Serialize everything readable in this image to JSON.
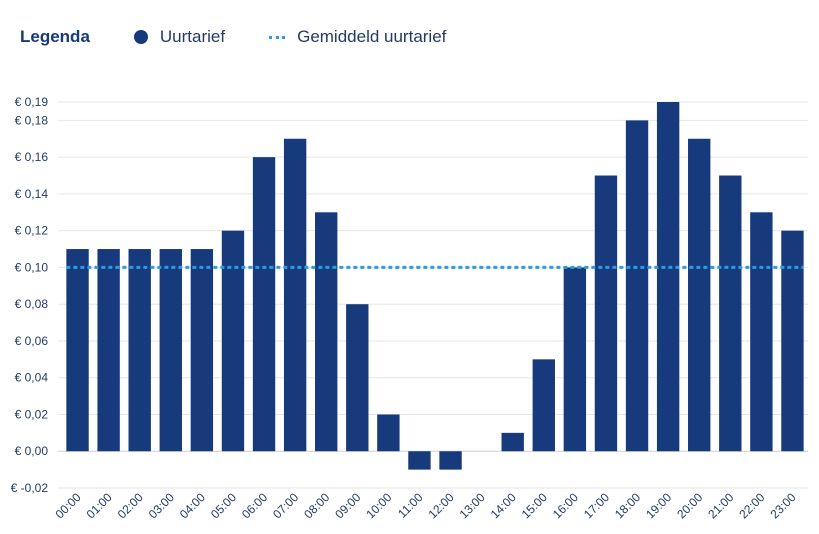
{
  "legend": {
    "title": "Legenda",
    "bar_label": "Uurtarief",
    "line_label": "Gemiddeld uurtarief"
  },
  "colors": {
    "bar": "#163a7c",
    "average_line": "#2e9be0",
    "grid": "#e6e6e6",
    "text": "#233a66"
  },
  "chart_data": {
    "type": "bar",
    "categories": [
      "00:00",
      "01:00",
      "02:00",
      "03:00",
      "04:00",
      "05:00",
      "06:00",
      "07:00",
      "08:00",
      "09:00",
      "10:00",
      "11:00",
      "12:00",
      "13:00",
      "14:00",
      "15:00",
      "16:00",
      "17:00",
      "18:00",
      "19:00",
      "20:00",
      "21:00",
      "22:00",
      "23:00"
    ],
    "series": [
      {
        "name": "Uurtarief",
        "values": [
          0.11,
          0.11,
          0.11,
          0.11,
          0.11,
          0.12,
          0.16,
          0.17,
          0.13,
          0.08,
          0.02,
          -0.01,
          -0.01,
          0.0,
          0.01,
          0.05,
          0.1,
          0.15,
          0.18,
          0.19,
          0.17,
          0.15,
          0.13,
          0.12
        ]
      }
    ],
    "average": {
      "name": "Gemiddeld uurtarief",
      "value": 0.1
    },
    "y_ticks": [
      {
        "value": -0.02,
        "label": "€ -0,02"
      },
      {
        "value": 0.0,
        "label": "€ 0,00"
      },
      {
        "value": 0.02,
        "label": "€ 0,02"
      },
      {
        "value": 0.04,
        "label": "€ 0,04"
      },
      {
        "value": 0.06,
        "label": "€ 0,06"
      },
      {
        "value": 0.08,
        "label": "€ 0,08"
      },
      {
        "value": 0.1,
        "label": "€ 0,10"
      },
      {
        "value": 0.12,
        "label": "€ 0,12"
      },
      {
        "value": 0.14,
        "label": "€ 0,14"
      },
      {
        "value": 0.16,
        "label": "€ 0,16"
      },
      {
        "value": 0.18,
        "label": "€ 0,18"
      },
      {
        "value": 0.19,
        "label": "€ 0,19"
      }
    ],
    "ylim": [
      -0.02,
      0.19
    ],
    "grid": true,
    "legend_position": "top-left"
  }
}
